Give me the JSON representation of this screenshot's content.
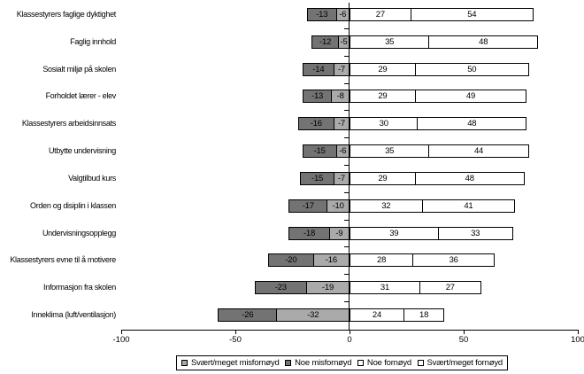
{
  "chart_data": {
    "type": "bar",
    "variant": "diverging-stacked-horizontal",
    "title": "",
    "xlabel": "",
    "ylabel": "",
    "grid": false,
    "legend_position": "bottom",
    "xlim": [
      -100,
      100
    ],
    "x_ticks": [
      "-100",
      "-50",
      "0",
      "50",
      "100"
    ],
    "categories": [
      "Klassestyrers faglige dyktighet",
      "Faglig innhold",
      "Sosialt miljø på skolen",
      "Forholdet lærer - elev",
      "Klassestyrers arbeidsinnsats",
      "Utbytte undervisning",
      "Valgtilbud kurs",
      "Orden og disiplin i klassen",
      "Undervisningsopplegg",
      "Klassestyrers evne til å motivere",
      "Informasjon fra skolen",
      "Inneklima (luft/ventilasjon)"
    ],
    "series": [
      {
        "key": "svaert-meget-misfornoyd",
        "name": "Svært/meget misfornøyd",
        "color": "#AAAAAA",
        "side": "negative-inner",
        "values": [
          -6,
          -5,
          -7,
          -8,
          -7,
          -6,
          -7,
          -10,
          -9,
          -16,
          -19,
          -32
        ]
      },
      {
        "key": "noe-misfornoyd",
        "name": "Noe misfornøyd",
        "color": "#737373",
        "side": "negative-outer",
        "values": [
          -13,
          -12,
          -14,
          -13,
          -16,
          -15,
          -15,
          -17,
          -18,
          -20,
          -23,
          -26
        ]
      },
      {
        "key": "noe-fornoyd",
        "name": "Noe fornøyd",
        "color": "#FFFFFF",
        "side": "positive-inner",
        "values": [
          27,
          35,
          29,
          29,
          30,
          35,
          29,
          32,
          39,
          28,
          31,
          24
        ]
      },
      {
        "key": "svaert-meget-fornoyd",
        "name": "Svært/meget fornøyd",
        "color": "#FFFFFF",
        "side": "positive-outer",
        "values": [
          54,
          48,
          50,
          49,
          48,
          44,
          48,
          41,
          33,
          36,
          27,
          18
        ]
      }
    ]
  }
}
